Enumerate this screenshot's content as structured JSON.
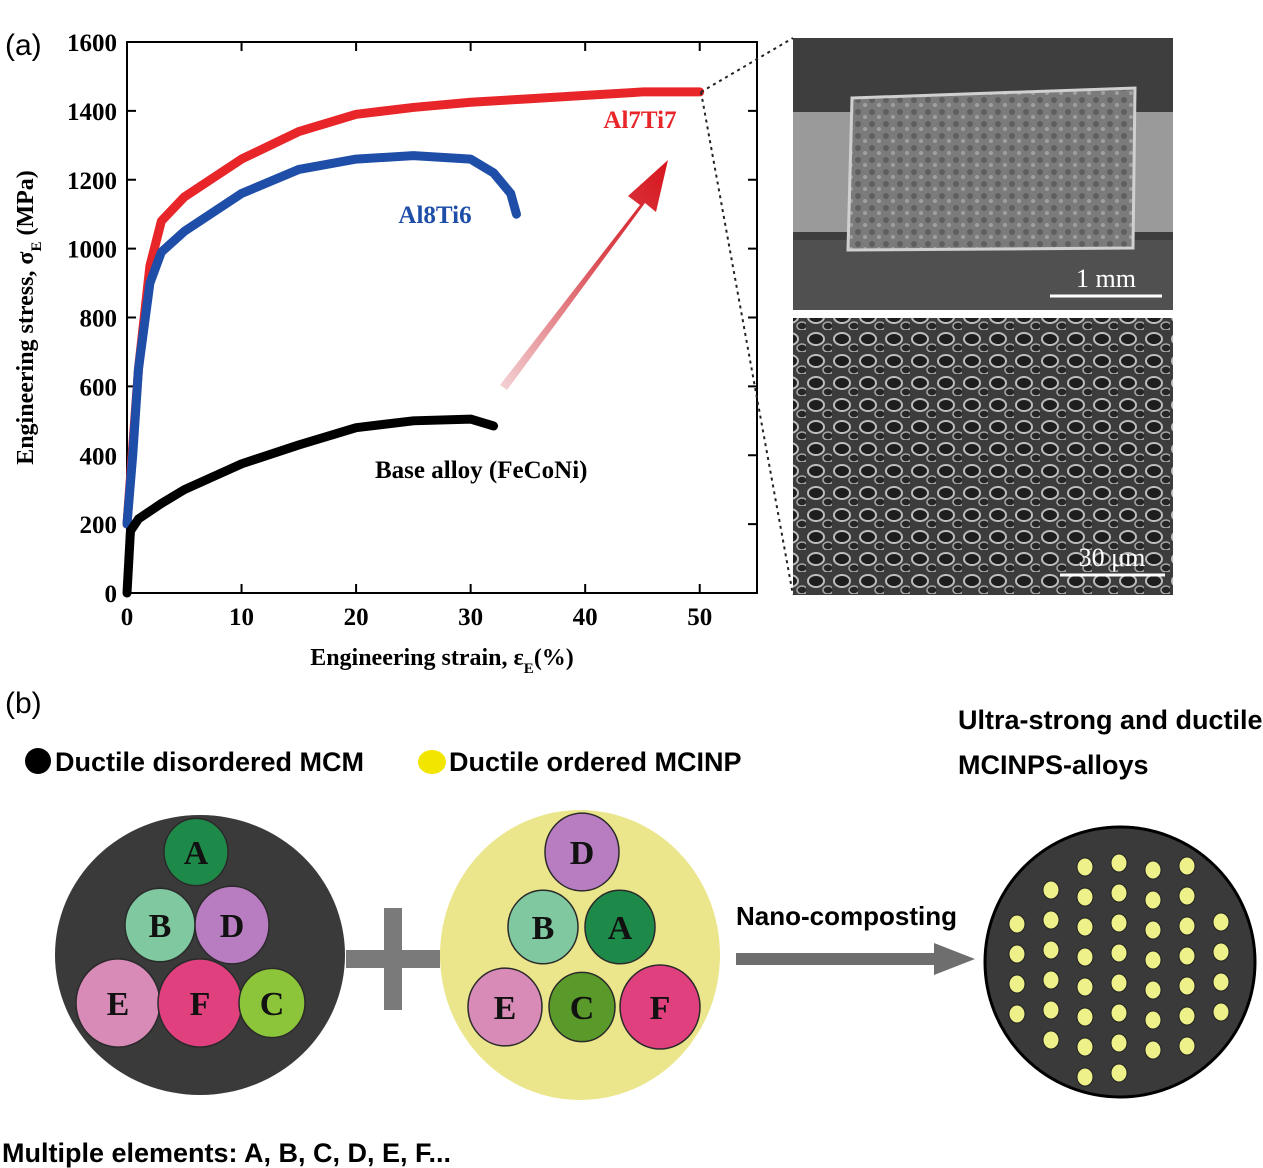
{
  "panels": {
    "a": "(a)",
    "b": "(b)"
  },
  "chart_data": {
    "type": "line",
    "xlabel": {
      "text": "Engineering strain, ε",
      "sub": "E",
      "tail": "(%)"
    },
    "ylabel": {
      "text": "Engineering stress, σ",
      "sub": "E",
      "tail": " (MPa)"
    },
    "xlim": [
      0,
      55
    ],
    "xticks": [
      0,
      10,
      20,
      30,
      40,
      50
    ],
    "ylim": [
      0,
      1600
    ],
    "yticks": [
      0,
      200,
      400,
      600,
      800,
      1000,
      1200,
      1400,
      1600
    ],
    "series": [
      {
        "name": "Al7Ti7",
        "color": "#e8262a",
        "x": [
          0,
          1,
          2,
          3,
          5,
          10,
          15,
          20,
          25,
          30,
          35,
          40,
          45,
          50
        ],
        "values": [
          200,
          650,
          950,
          1080,
          1150,
          1260,
          1340,
          1390,
          1410,
          1425,
          1435,
          1445,
          1455,
          1455
        ]
      },
      {
        "name": "Al8Ti6",
        "color": "#1f4ea8",
        "x": [
          0,
          0.5,
          1,
          2,
          3,
          5,
          10,
          15,
          20,
          25,
          30,
          32,
          33.5,
          34
        ],
        "values": [
          200,
          400,
          650,
          900,
          990,
          1050,
          1160,
          1230,
          1260,
          1270,
          1260,
          1220,
          1160,
          1100
        ]
      },
      {
        "name": "Base alloy (FeCoNi)",
        "color": "#000000",
        "x": [
          0,
          0.3,
          1,
          3,
          5,
          8,
          10,
          15,
          20,
          25,
          30,
          32
        ],
        "values": [
          0,
          180,
          215,
          260,
          300,
          345,
          375,
          430,
          480,
          500,
          505,
          485
        ]
      }
    ]
  },
  "images": {
    "top_scale": "1 mm",
    "bottom_scale": "30 μm"
  },
  "diagram": {
    "legend_disordered": "Ductile disordered MCM",
    "legend_ordered": "Ductile ordered MCINP",
    "result_title": [
      "Ultra-strong and ductile",
      "MCINPS-alloys"
    ],
    "process": "Nano-composting",
    "left_elements": [
      "A",
      "B",
      "D",
      "E",
      "F",
      "C"
    ],
    "middle_elements": [
      "D",
      "B",
      "A",
      "E",
      "C",
      "F"
    ],
    "footer": "Multiple elements: A, B, C, D, E, F..."
  }
}
